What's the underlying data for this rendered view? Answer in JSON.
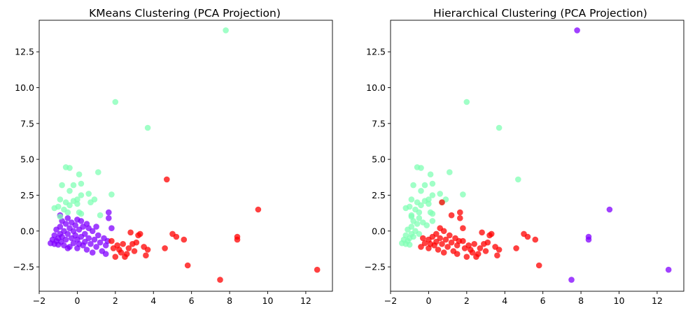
{
  "chart_data": [
    {
      "type": "scatter",
      "title": "KMeans Clustering (PCA Projection)",
      "xlabel": "",
      "ylabel": "",
      "xlim": [
        -2,
        13.4
      ],
      "ylim": [
        -4.2,
        14.7
      ],
      "xticks": [
        -2,
        0,
        2,
        4,
        6,
        8,
        10,
        12
      ],
      "yticks": [
        -2.5,
        0.0,
        2.5,
        5.0,
        7.5,
        10.0,
        12.5
      ],
      "grid": false,
      "legend": "none",
      "marker_alpha": 0.75,
      "series": [
        {
          "color": "#8000ff",
          "points": [
            [
              -1.4,
              -0.85
            ],
            [
              -1.3,
              -0.6
            ],
            [
              -1.2,
              -0.9
            ],
            [
              -1.2,
              -0.3
            ],
            [
              -1.1,
              -0.7
            ],
            [
              -1.1,
              0.1
            ],
            [
              -1.0,
              -0.5
            ],
            [
              -1.0,
              -0.95
            ],
            [
              -0.9,
              0.3
            ],
            [
              -0.9,
              -0.2
            ],
            [
              -0.85,
              -0.75
            ],
            [
              -0.8,
              0.7
            ],
            [
              -0.8,
              -0.4
            ],
            [
              -0.7,
              0.0
            ],
            [
              -0.7,
              -1.0
            ],
            [
              -0.6,
              0.5
            ],
            [
              -0.6,
              -0.6
            ],
            [
              -0.5,
              -0.2
            ],
            [
              -0.5,
              0.9
            ],
            [
              -0.4,
              -1.1
            ],
            [
              -0.4,
              0.2
            ],
            [
              -0.3,
              -0.5
            ],
            [
              -0.3,
              0.6
            ],
            [
              -0.2,
              -0.85
            ],
            [
              -0.2,
              0.0
            ],
            [
              -0.1,
              -0.3
            ],
            [
              -0.1,
              0.4
            ],
            [
              0.0,
              -1.2
            ],
            [
              0.0,
              -0.6
            ],
            [
              0.1,
              0.1
            ],
            [
              0.1,
              -0.9
            ],
            [
              0.2,
              0.7
            ],
            [
              0.2,
              -0.4
            ],
            [
              0.3,
              -1.0
            ],
            [
              0.3,
              0.3
            ],
            [
              0.4,
              -0.2
            ],
            [
              0.4,
              -0.75
            ],
            [
              0.5,
              0.5
            ],
            [
              0.5,
              -1.3
            ],
            [
              0.6,
              -0.5
            ],
            [
              0.6,
              0.2
            ],
            [
              0.7,
              -0.9
            ],
            [
              0.8,
              0.0
            ],
            [
              0.8,
              -1.5
            ],
            [
              0.9,
              -0.6
            ],
            [
              1.0,
              0.3
            ],
            [
              1.0,
              -1.1
            ],
            [
              1.1,
              -0.3
            ],
            [
              1.2,
              -0.8
            ],
            [
              1.3,
              -1.4
            ],
            [
              1.4,
              -0.5
            ],
            [
              1.5,
              -1.0
            ],
            [
              1.6,
              -0.7
            ],
            [
              1.65,
              1.3
            ],
            [
              1.65,
              0.9
            ],
            [
              1.8,
              0.2
            ],
            [
              1.5,
              -1.6
            ],
            [
              -0.9,
              1.1
            ],
            [
              -0.5,
              -1.2
            ],
            [
              0.0,
              0.8
            ]
          ]
        },
        {
          "color": "#80ffb4",
          "points": [
            [
              -0.6,
              4.45
            ],
            [
              -0.4,
              4.4
            ],
            [
              0.1,
              3.95
            ],
            [
              1.1,
              4.1
            ],
            [
              -0.8,
              3.2
            ],
            [
              -0.2,
              3.2
            ],
            [
              0.2,
              3.3
            ],
            [
              -0.4,
              2.8
            ],
            [
              0.6,
              2.6
            ],
            [
              0.2,
              2.5
            ],
            [
              -0.9,
              2.2
            ],
            [
              -0.6,
              2.0
            ],
            [
              -0.2,
              2.1
            ],
            [
              0.0,
              2.2
            ],
            [
              0.7,
              2.0
            ],
            [
              0.9,
              2.2
            ],
            [
              1.8,
              2.55
            ],
            [
              -1.0,
              1.7
            ],
            [
              -0.7,
              1.5
            ],
            [
              -0.4,
              1.8
            ],
            [
              0.0,
              1.9
            ],
            [
              -0.5,
              1.3
            ],
            [
              0.1,
              1.3
            ],
            [
              1.2,
              1.1
            ],
            [
              -1.2,
              1.6
            ],
            [
              -0.9,
              1.0
            ],
            [
              0.2,
              1.2
            ],
            [
              2.0,
              9.0
            ],
            [
              3.7,
              7.2
            ],
            [
              7.8,
              14.0
            ]
          ]
        },
        {
          "color": "#ff0000",
          "points": [
            [
              1.8,
              -0.7
            ],
            [
              1.9,
              -1.2
            ],
            [
              2.0,
              -1.8
            ],
            [
              2.1,
              -1.0
            ],
            [
              2.3,
              -1.5
            ],
            [
              2.4,
              -0.9
            ],
            [
              2.5,
              -1.8
            ],
            [
              2.7,
              -1.2
            ],
            [
              2.8,
              -0.1
            ],
            [
              2.9,
              -0.9
            ],
            [
              3.0,
              -1.4
            ],
            [
              3.2,
              -0.3
            ],
            [
              3.3,
              -0.2
            ],
            [
              3.5,
              -1.1
            ],
            [
              3.6,
              -1.7
            ],
            [
              3.7,
              -1.3
            ],
            [
              4.6,
              -1.2
            ],
            [
              4.7,
              3.6
            ],
            [
              5.0,
              -0.2
            ],
            [
              5.2,
              -0.4
            ],
            [
              5.6,
              -0.6
            ],
            [
              5.8,
              -2.4
            ],
            [
              7.5,
              -3.4
            ],
            [
              8.4,
              -0.4
            ],
            [
              8.4,
              -0.6
            ],
            [
              9.5,
              1.5
            ],
            [
              12.6,
              -2.7
            ],
            [
              2.2,
              -1.3
            ],
            [
              2.6,
              -1.6
            ],
            [
              3.1,
              -0.8
            ]
          ]
        }
      ]
    },
    {
      "type": "scatter",
      "title": "Hierarchical Clustering (PCA Projection)",
      "xlabel": "",
      "ylabel": "",
      "xlim": [
        -2,
        13.4
      ],
      "ylim": [
        -4.2,
        14.7
      ],
      "xticks": [
        -2,
        0,
        2,
        4,
        6,
        8,
        10,
        12
      ],
      "yticks": [
        -2.5,
        0.0,
        2.5,
        5.0,
        7.5,
        10.0,
        12.5
      ],
      "grid": false,
      "legend": "none",
      "marker_alpha": 0.75,
      "series": [
        {
          "color": "#80ffb4",
          "points": [
            [
              -1.4,
              -0.85
            ],
            [
              -1.3,
              -0.6
            ],
            [
              -1.2,
              -0.9
            ],
            [
              -1.2,
              -0.3
            ],
            [
              -1.1,
              -0.7
            ],
            [
              -1.1,
              0.1
            ],
            [
              -1.0,
              -0.5
            ],
            [
              -1.0,
              -0.95
            ],
            [
              -0.9,
              0.3
            ],
            [
              -0.9,
              -0.2
            ],
            [
              -0.8,
              0.7
            ],
            [
              -0.8,
              -0.4
            ],
            [
              -0.7,
              0.0
            ],
            [
              -0.6,
              0.5
            ],
            [
              -0.5,
              -0.2
            ],
            [
              -0.5,
              0.9
            ],
            [
              -0.3,
              0.6
            ],
            [
              -0.1,
              0.4
            ],
            [
              0.2,
              0.7
            ],
            [
              -0.6,
              4.45
            ],
            [
              -0.4,
              4.4
            ],
            [
              0.1,
              3.95
            ],
            [
              1.1,
              4.1
            ],
            [
              -0.8,
              3.2
            ],
            [
              -0.2,
              3.2
            ],
            [
              0.2,
              3.3
            ],
            [
              -0.4,
              2.8
            ],
            [
              0.6,
              2.6
            ],
            [
              0.2,
              2.5
            ],
            [
              -0.9,
              2.2
            ],
            [
              -0.6,
              2.0
            ],
            [
              -0.2,
              2.1
            ],
            [
              0.0,
              2.2
            ],
            [
              0.7,
              2.0
            ],
            [
              0.9,
              2.2
            ],
            [
              1.8,
              2.55
            ],
            [
              -1.0,
              1.7
            ],
            [
              -0.7,
              1.5
            ],
            [
              -0.4,
              1.8
            ],
            [
              0.0,
              1.9
            ],
            [
              -0.5,
              1.3
            ],
            [
              0.1,
              1.3
            ],
            [
              -1.2,
              1.6
            ],
            [
              -0.9,
              1.0
            ],
            [
              0.2,
              1.2
            ],
            [
              -0.9,
              1.1
            ],
            [
              2.0,
              9.0
            ],
            [
              3.7,
              7.2
            ],
            [
              4.7,
              3.6
            ]
          ]
        },
        {
          "color": "#ff0000",
          "points": [
            [
              -0.4,
              -1.1
            ],
            [
              -0.3,
              -0.5
            ],
            [
              -0.2,
              -0.85
            ],
            [
              0.0,
              -1.2
            ],
            [
              0.0,
              -0.6
            ],
            [
              0.1,
              -0.9
            ],
            [
              0.2,
              -0.4
            ],
            [
              0.3,
              -1.0
            ],
            [
              0.4,
              -0.2
            ],
            [
              0.4,
              -0.75
            ],
            [
              0.5,
              -1.3
            ],
            [
              0.6,
              -0.5
            ],
            [
              0.6,
              0.2
            ],
            [
              0.7,
              -0.9
            ],
            [
              0.8,
              0.0
            ],
            [
              0.8,
              -1.5
            ],
            [
              0.9,
              -0.6
            ],
            [
              1.0,
              -1.1
            ],
            [
              1.1,
              -0.3
            ],
            [
              1.2,
              -0.8
            ],
            [
              1.3,
              -1.4
            ],
            [
              1.4,
              -0.5
            ],
            [
              1.5,
              -1.0
            ],
            [
              1.6,
              -0.7
            ],
            [
              1.65,
              1.3
            ],
            [
              1.65,
              0.9
            ],
            [
              1.8,
              0.2
            ],
            [
              1.5,
              -1.6
            ],
            [
              0.7,
              2.0
            ],
            [
              1.8,
              -0.7
            ],
            [
              1.9,
              -1.2
            ],
            [
              2.0,
              -1.8
            ],
            [
              2.1,
              -1.0
            ],
            [
              2.3,
              -1.5
            ],
            [
              2.4,
              -0.9
            ],
            [
              2.5,
              -1.8
            ],
            [
              2.7,
              -1.2
            ],
            [
              2.8,
              -0.1
            ],
            [
              2.9,
              -0.9
            ],
            [
              3.0,
              -1.4
            ],
            [
              3.2,
              -0.3
            ],
            [
              3.3,
              -0.2
            ],
            [
              3.5,
              -1.1
            ],
            [
              3.6,
              -1.7
            ],
            [
              3.7,
              -1.3
            ],
            [
              4.6,
              -1.2
            ],
            [
              5.0,
              -0.2
            ],
            [
              5.2,
              -0.4
            ],
            [
              5.6,
              -0.6
            ],
            [
              5.8,
              -2.4
            ],
            [
              2.2,
              -1.3
            ],
            [
              2.6,
              -1.6
            ],
            [
              3.1,
              -0.8
            ],
            [
              1.2,
              1.1
            ]
          ]
        },
        {
          "color": "#8000ff",
          "points": [
            [
              7.8,
              14.0
            ],
            [
              9.5,
              1.5
            ],
            [
              8.4,
              -0.4
            ],
            [
              8.4,
              -0.6
            ],
            [
              7.5,
              -3.4
            ],
            [
              12.6,
              -2.7
            ]
          ]
        }
      ]
    }
  ]
}
